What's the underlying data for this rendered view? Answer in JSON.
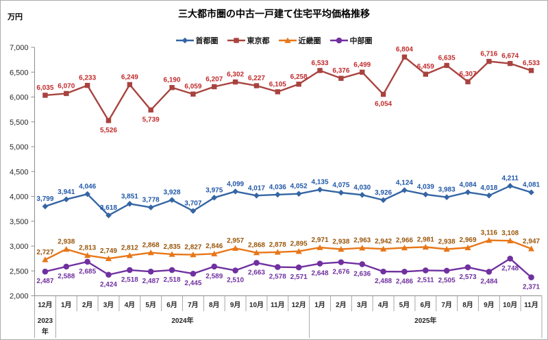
{
  "chart_data": {
    "type": "line",
    "title": "三大都市圏の中古一戸建て住宅平均価格推移",
    "unit_label": "万円",
    "ylim": [
      2000,
      7000
    ],
    "ytick_step": 500,
    "grid": false,
    "legend_position": "top-center",
    "x_months": [
      "12月",
      "1月",
      "2月",
      "3月",
      "4月",
      "5月",
      "6月",
      "7月",
      "8月",
      "9月",
      "10月",
      "11月",
      "12月",
      "1月",
      "2月",
      "3月",
      "4月",
      "5月",
      "6月",
      "7月",
      "8月",
      "9月",
      "10月",
      "11月"
    ],
    "x_years": [
      {
        "label": "2023年",
        "span": 1
      },
      {
        "label": "2024年",
        "span": 12
      },
      {
        "label": "2025年",
        "span": 11
      }
    ],
    "series": [
      {
        "id": "shutoken",
        "name": "首都圏",
        "marker": "diamond",
        "color": "#3465A4",
        "label_color": "#2057A7",
        "label_side": "above",
        "below_indices": [],
        "values": [
          3799,
          3941,
          4046,
          3618,
          3851,
          3778,
          3928,
          3707,
          3975,
          4099,
          4017,
          4036,
          4052,
          4135,
          4075,
          4030,
          3926,
          4124,
          4039,
          3983,
          4084,
          4018,
          4211,
          4081
        ]
      },
      {
        "id": "tokyo",
        "name": "東京都",
        "marker": "square",
        "color": "#A8433F",
        "label_color": "#C22B2B",
        "label_side": "above",
        "below_indices": [
          3,
          5,
          16
        ],
        "values": [
          6035,
          6070,
          6233,
          5526,
          6249,
          5739,
          6190,
          6059,
          6207,
          6302,
          6227,
          6105,
          6258,
          6533,
          6376,
          6499,
          6054,
          6804,
          6459,
          6635,
          6307,
          6716,
          6674,
          6533
        ]
      },
      {
        "id": "kinki",
        "name": "近畿圏",
        "marker": "triangle",
        "color": "#E87617",
        "label_color": "#9A560B",
        "label_side": "above",
        "below_indices": [],
        "values": [
          2727,
          2938,
          2813,
          2749,
          2812,
          2868,
          2835,
          2827,
          2846,
          2957,
          2868,
          2878,
          2895,
          2971,
          2938,
          2963,
          2942,
          2966,
          2981,
          2938,
          2969,
          3116,
          3108,
          2947
        ]
      },
      {
        "id": "chubu",
        "name": "中部圏",
        "marker": "circle",
        "color": "#7030A0",
        "label_color": "#7030A0",
        "label_side": "below",
        "below_indices": [],
        "values": [
          2487,
          2588,
          2685,
          2424,
          2518,
          2487,
          2518,
          2445,
          2589,
          2510,
          2663,
          2578,
          2571,
          2648,
          2676,
          2636,
          2488,
          2486,
          2511,
          2505,
          2573,
          2484,
          2748,
          2371
        ]
      }
    ],
    "axis_color": "#8C8C8C",
    "separator_color": "#A6A6A6",
    "tick_label_color": "#262626",
    "category_label_color": "#262626"
  }
}
